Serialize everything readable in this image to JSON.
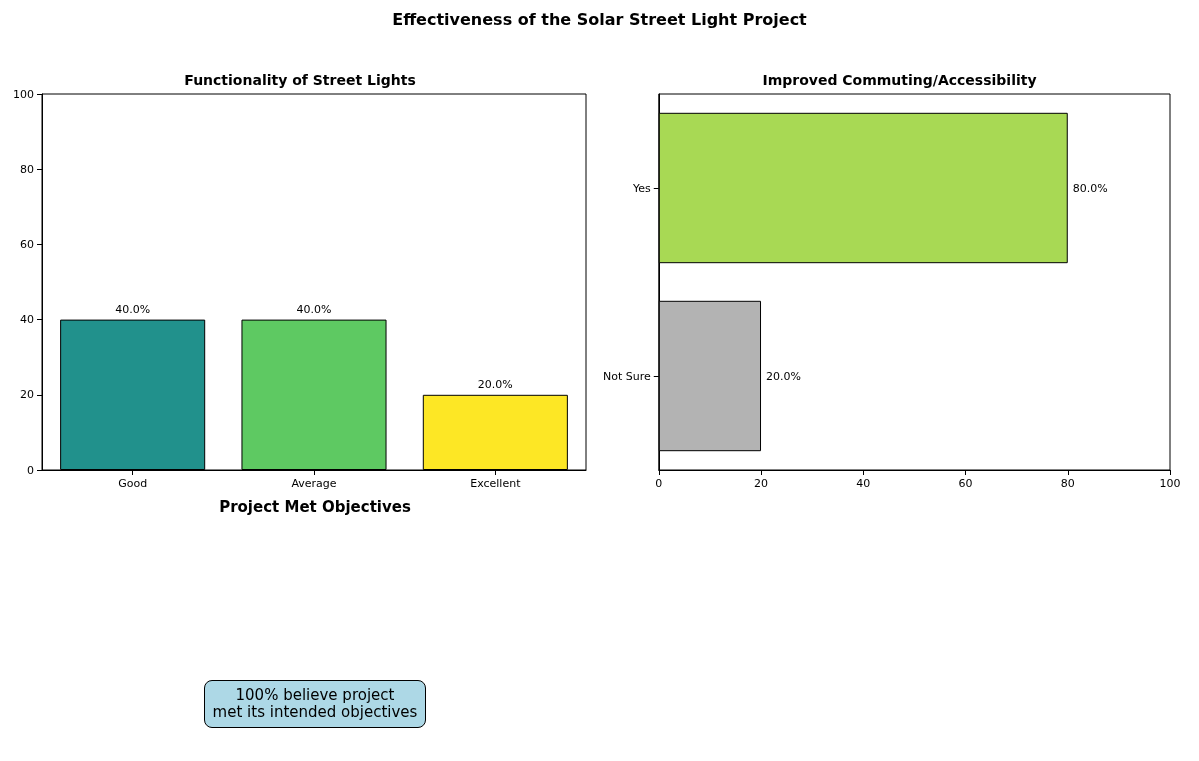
{
  "chart_data": [
    {
      "type": "other",
      "title": "Effectiveness of the Solar Street Light Project"
    },
    {
      "type": "bar",
      "title": "Functionality of Street Lights",
      "categories": [
        "Good",
        "Average",
        "Excellent"
      ],
      "values": [
        40,
        40,
        20
      ],
      "colors": [
        "#21918c",
        "#5ec962",
        "#fde725"
      ],
      "value_labels": [
        "40.0%",
        "40.0%",
        "20.0%"
      ],
      "ylim": [
        0,
        100
      ],
      "yticks": [
        0,
        20,
        40,
        60,
        80,
        100
      ],
      "grid": false
    },
    {
      "type": "bar",
      "orientation": "horizontal",
      "title": "Improved Commuting/Accessibility",
      "categories": [
        "Yes",
        "Not Sure"
      ],
      "values": [
        80,
        20
      ],
      "colors": [
        "#a8d954",
        "#b3b3b3"
      ],
      "value_labels": [
        "80.0%",
        "20.0%"
      ],
      "xlim": [
        0,
        100
      ],
      "xticks": [
        0,
        20,
        40,
        60,
        80,
        100
      ],
      "grid": false
    },
    {
      "type": "other",
      "title": "Project Met Objectives",
      "annotations": [
        "100% believe project\nmet its intended objectives"
      ]
    }
  ]
}
